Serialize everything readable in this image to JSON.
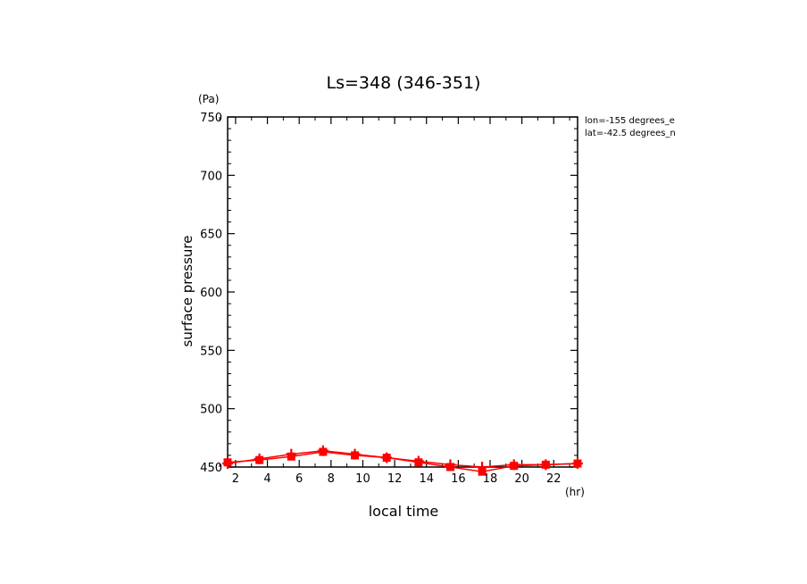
{
  "chart_data": {
    "type": "line",
    "title": "Ls=348 (346-351)",
    "xlabel": "local time",
    "ylabel": "surface pressure",
    "xunit": "(hr)",
    "yunit": "(Pa)",
    "xlim": [
      1.5,
      23.5
    ],
    "ylim": [
      450,
      750
    ],
    "xticks": [
      2,
      4,
      6,
      8,
      10,
      12,
      14,
      16,
      18,
      20,
      22
    ],
    "yticks": [
      450,
      500,
      550,
      600,
      650,
      700,
      750
    ],
    "annotations": [
      "lon=-155 degrees_e",
      "lat=-42.5 degrees_n"
    ],
    "grid": false,
    "series": [
      {
        "color": "#ff0000",
        "marker": "square",
        "x": [
          1.5,
          3.5,
          5.5,
          7.5,
          9.5,
          11.5,
          13.5,
          15.5,
          17.5,
          19.5,
          21.5,
          23.5
        ],
        "values": [
          454,
          456,
          459,
          463,
          460,
          458,
          454,
          450,
          446,
          451,
          452,
          453
        ]
      },
      {
        "color": "#ff0000",
        "marker": "plus",
        "x": [
          1.5,
          3.5,
          5.5,
          7.5,
          9.5,
          11.5,
          13.5,
          15.5,
          17.5,
          19.5,
          21.5,
          23.5
        ],
        "values": [
          453,
          457,
          461,
          464,
          461,
          458,
          455,
          452,
          450,
          452,
          452,
          453
        ]
      }
    ]
  }
}
